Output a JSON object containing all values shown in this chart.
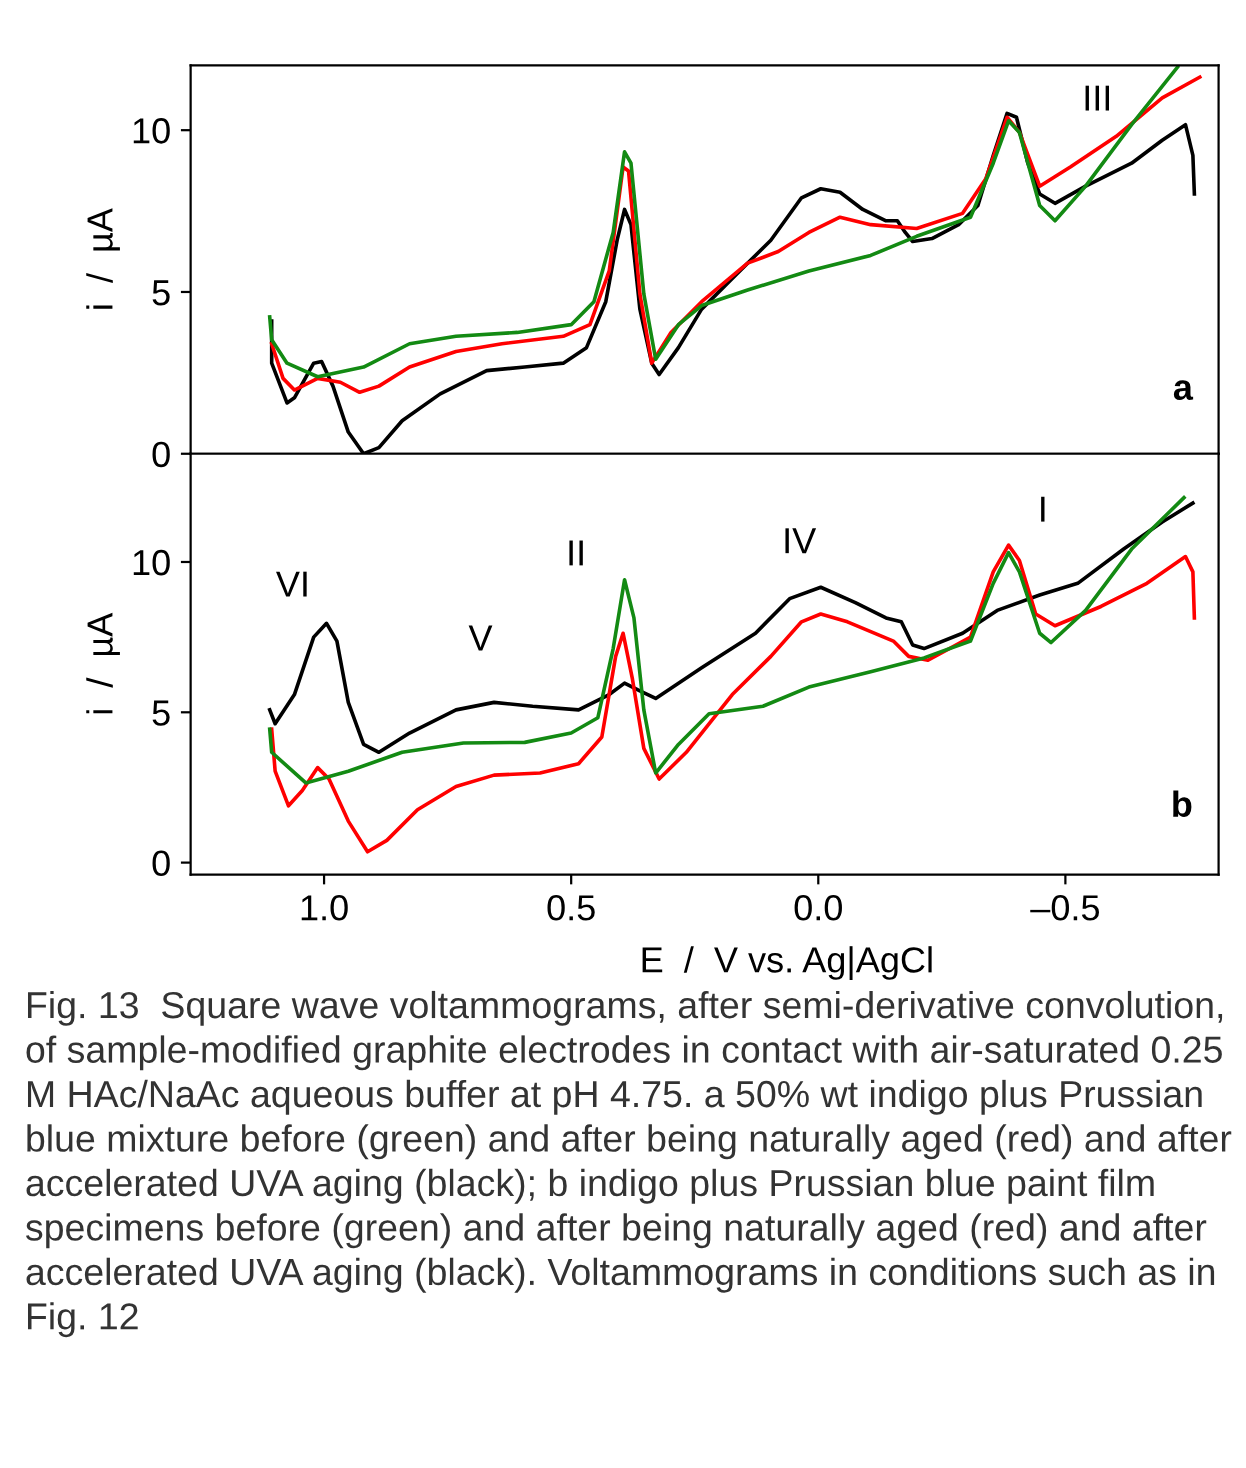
{
  "chart_data": [
    {
      "type": "line",
      "title": "a",
      "ylabel": "i  /  µA",
      "xlim": [
        1.27,
        -0.81
      ],
      "ylim": [
        0,
        12
      ],
      "yticks": [
        0,
        5,
        10
      ],
      "tick_labels": "y",
      "grid": false,
      "legend": false,
      "annotations": [
        "III"
      ],
      "series": [
        {
          "color": "#000000",
          "x": [
            1.106,
            1.106,
            1.075,
            1.06,
            1.021,
            1.005,
            0.982,
            0.951,
            0.92,
            0.889,
            0.842,
            0.765,
            0.671,
            0.594,
            0.516,
            0.469,
            0.43,
            0.407,
            0.392,
            0.379,
            0.361,
            0.337,
            0.322,
            0.283,
            0.236,
            0.174,
            0.096,
            0.034,
            -0.005,
            -0.044,
            -0.09,
            -0.137,
            -0.16,
            -0.176,
            -0.191,
            -0.23,
            -0.284,
            -0.323,
            -0.354,
            -0.382,
            -0.401,
            -0.424,
            -0.448,
            -0.479,
            -0.541,
            -0.634,
            -0.696,
            -0.743,
            -0.758,
            -0.761
          ],
          "values": [
            4.1,
            2.8,
            1.57,
            1.73,
            2.8,
            2.85,
            2.09,
            0.67,
            0.0,
            0.19,
            1.02,
            1.85,
            2.57,
            2.68,
            2.8,
            3.28,
            4.7,
            6.6,
            7.55,
            7.08,
            4.47,
            2.8,
            2.45,
            3.28,
            4.47,
            5.42,
            6.6,
            7.91,
            8.19,
            8.08,
            7.55,
            7.2,
            7.2,
            6.84,
            6.56,
            6.65,
            7.08,
            7.67,
            9.22,
            10.52,
            10.4,
            8.98,
            8.03,
            7.74,
            8.27,
            8.98,
            9.69,
            10.17,
            9.22,
            8.03
          ]
        },
        {
          "color": "#ff0000",
          "x": [
            1.106,
            1.083,
            1.06,
            1.013,
            0.967,
            0.928,
            0.889,
            0.827,
            0.733,
            0.64,
            0.516,
            0.462,
            0.423,
            0.395,
            0.384,
            0.361,
            0.337,
            0.298,
            0.236,
            0.143,
            0.081,
            0.019,
            -0.044,
            -0.106,
            -0.199,
            -0.292,
            -0.339,
            -0.382,
            -0.407,
            -0.448,
            -0.51,
            -0.603,
            -0.696,
            -0.772
          ],
          "values": [
            3.4,
            2.33,
            1.97,
            2.33,
            2.21,
            1.9,
            2.09,
            2.68,
            3.16,
            3.4,
            3.63,
            3.99,
            5.65,
            8.86,
            8.74,
            4.94,
            2.8,
            3.75,
            4.7,
            5.89,
            6.25,
            6.84,
            7.31,
            7.08,
            6.96,
            7.43,
            8.5,
            10.4,
            9.93,
            8.27,
            8.86,
            9.81,
            11.0,
            11.64
          ]
        },
        {
          "color": "#138a13",
          "x": [
            1.11,
            1.106,
            1.075,
            1.013,
            0.92,
            0.827,
            0.733,
            0.609,
            0.5,
            0.454,
            0.415,
            0.392,
            0.379,
            0.353,
            0.329,
            0.283,
            0.236,
            0.143,
            0.019,
            -0.106,
            -0.199,
            -0.308,
            -0.354,
            -0.385,
            -0.407,
            -0.448,
            -0.479,
            -0.541,
            -0.634,
            -0.727
          ],
          "values": [
            4.23,
            3.52,
            2.8,
            2.38,
            2.68,
            3.4,
            3.63,
            3.75,
            3.99,
            4.7,
            6.84,
            9.33,
            8.98,
            4.94,
            2.92,
            3.99,
            4.58,
            5.06,
            5.65,
            6.13,
            6.72,
            7.31,
            8.98,
            10.29,
            9.93,
            7.67,
            7.2,
            8.27,
            10.17,
            11.95
          ]
        }
      ]
    },
    {
      "type": "line",
      "title": "b",
      "ylabel": "i  /  µA",
      "xlabel": "E  /  V vs. Ag|AgCl",
      "xlim": [
        1.27,
        -0.81
      ],
      "ylim": [
        -0.4,
        13.6
      ],
      "yticks": [
        0,
        5,
        10
      ],
      "xticks": [
        {
          "value": 1.0,
          "label": "1.0"
        },
        {
          "value": 0.5,
          "label": "0.5"
        },
        {
          "value": 0.0,
          "label": "0.0"
        },
        {
          "value": -0.5,
          "label": "–0.5"
        }
      ],
      "grid": false,
      "legend": false,
      "annotations": [
        "VI",
        "V",
        "II",
        "IV",
        "I",
        "Fig. 13  Square wave voltammograms, after semi-derivative convolution, of sample-modified graphite electrodes in contact with air-saturated 0.25 M HAc/NaAc aqueous buffer at pH 4.75. a 50% wt indigo plus Prussian blue mixture before (green) and after being naturally aged (red) and after accelerated UVA aging (black); b indigo plus Prussian blue paint film specimens before (green) and after being naturally aged (red) and after accelerated UVA aging (black). Voltammograms in conditions such as in Fig. 12"
      ],
      "series": [
        {
          "color": "#000000",
          "x": [
            1.11,
            1.099,
            1.06,
            1.021,
            0.995,
            0.974,
            0.951,
            0.92,
            0.889,
            0.827,
            0.733,
            0.656,
            0.578,
            0.485,
            0.423,
            0.392,
            0.361,
            0.329,
            0.236,
            0.127,
            0.058,
            -0.005,
            -0.075,
            -0.137,
            -0.168,
            -0.191,
            -0.214,
            -0.292,
            -0.362,
            -0.448,
            -0.525,
            -0.618,
            -0.696,
            -0.758
          ],
          "values": [
            5.08,
            4.62,
            5.59,
            7.5,
            7.96,
            7.37,
            5.33,
            3.93,
            3.67,
            4.31,
            5.08,
            5.33,
            5.2,
            5.08,
            5.59,
            5.97,
            5.71,
            5.46,
            6.48,
            7.63,
            8.78,
            9.16,
            8.65,
            8.14,
            8.01,
            7.24,
            7.12,
            7.63,
            8.39,
            8.9,
            9.29,
            10.43,
            11.33,
            11.96
          ]
        },
        {
          "color": "#ff0000",
          "x": [
            1.106,
            1.099,
            1.072,
            1.044,
            1.013,
            0.99,
            0.951,
            0.912,
            0.873,
            0.811,
            0.733,
            0.656,
            0.563,
            0.485,
            0.438,
            0.41,
            0.395,
            0.376,
            0.353,
            0.322,
            0.267,
            0.174,
            0.096,
            0.034,
            -0.005,
            -0.059,
            -0.152,
            -0.183,
            -0.222,
            -0.308,
            -0.354,
            -0.385,
            -0.407,
            -0.44,
            -0.479,
            -0.572,
            -0.665,
            -0.743,
            -0.758,
            -0.761
          ],
          "values": [
            4.44,
            3.04,
            1.89,
            2.4,
            3.16,
            2.78,
            1.38,
            0.36,
            0.74,
            1.76,
            2.53,
            2.91,
            2.98,
            3.29,
            4.18,
            6.86,
            7.63,
            6.1,
            3.8,
            2.78,
            3.67,
            5.59,
            6.86,
            8.01,
            8.27,
            8.01,
            7.37,
            6.86,
            6.73,
            7.5,
            9.67,
            10.56,
            10.05,
            8.27,
            7.88,
            8.52,
            9.29,
            10.18,
            9.67,
            8.14
          ]
        },
        {
          "color": "#138a13",
          "x": [
            1.11,
            1.106,
            1.037,
            0.951,
            0.842,
            0.718,
            0.594,
            0.5,
            0.446,
            0.415,
            0.392,
            0.373,
            0.353,
            0.329,
            0.283,
            0.221,
            0.112,
            0.019,
            -0.106,
            -0.214,
            -0.308,
            -0.354,
            -0.385,
            -0.407,
            -0.448,
            -0.471,
            -0.541,
            -0.634,
            -0.74
          ],
          "values": [
            4.44,
            3.67,
            2.65,
            3.04,
            3.67,
            3.98,
            4.0,
            4.31,
            4.82,
            7.12,
            9.41,
            8.14,
            5.08,
            2.98,
            3.93,
            4.95,
            5.2,
            5.84,
            6.35,
            6.81,
            7.37,
            9.29,
            10.31,
            9.67,
            7.63,
            7.32,
            8.39,
            10.43,
            12.14
          ]
        }
      ]
    }
  ]
}
